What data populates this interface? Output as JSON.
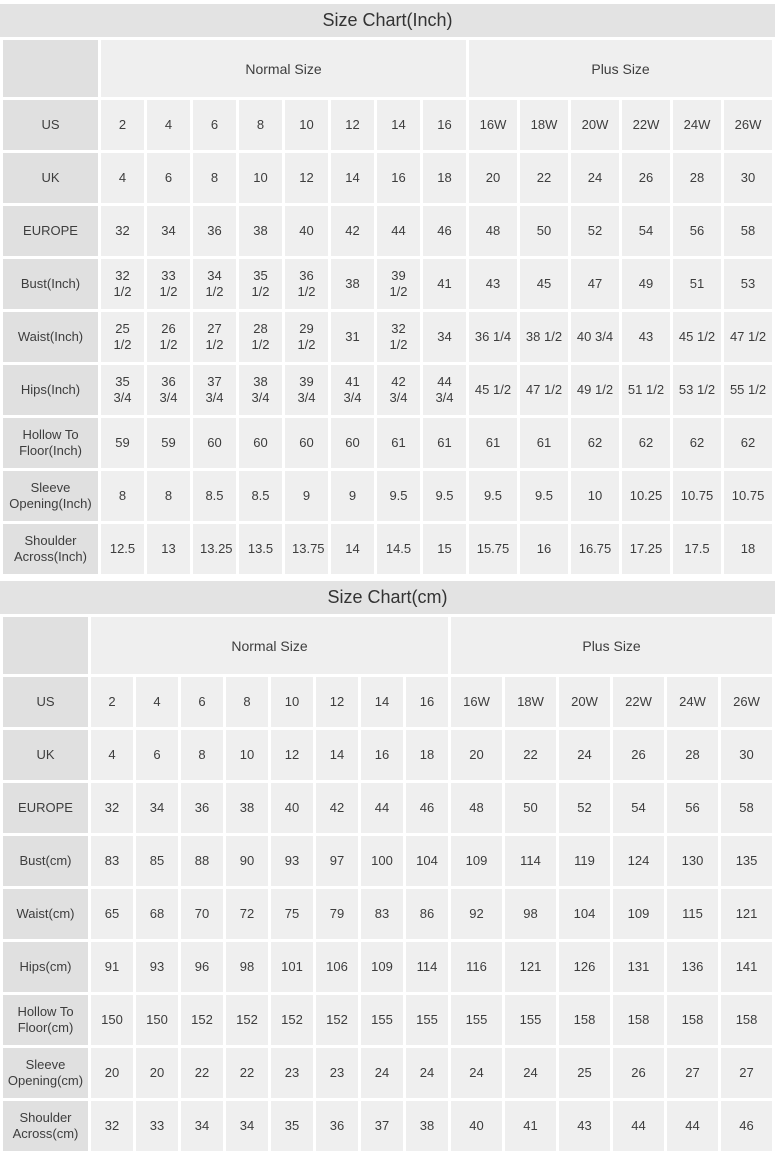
{
  "colors": {
    "title_band": "#e3e3e3",
    "label_cell": "#e0e0e0",
    "data_cell": "#efefef",
    "gutter": "#ffffff",
    "text": "#3d3d3d"
  },
  "chart_data": [
    {
      "type": "table",
      "title": "Size Chart(Inch)",
      "group_headers": [
        {
          "label": "Normal Size",
          "columns": 8
        },
        {
          "label": "Plus Size",
          "columns": 6
        }
      ],
      "rows": [
        {
          "label": "US",
          "values": [
            "2",
            "4",
            "6",
            "8",
            "10",
            "12",
            "14",
            "16",
            "16W",
            "18W",
            "20W",
            "22W",
            "24W",
            "26W"
          ]
        },
        {
          "label": "UK",
          "values": [
            "4",
            "6",
            "8",
            "10",
            "12",
            "14",
            "16",
            "18",
            "20",
            "22",
            "24",
            "26",
            "28",
            "30"
          ]
        },
        {
          "label": "EUROPE",
          "values": [
            "32",
            "34",
            "36",
            "38",
            "40",
            "42",
            "44",
            "46",
            "48",
            "50",
            "52",
            "54",
            "56",
            "58"
          ]
        },
        {
          "label": "Bust(Inch)",
          "values": [
            "32 1/2",
            "33 1/2",
            "34 1/2",
            "35 1/2",
            "36 1/2",
            "38",
            "39 1/2",
            "41",
            "43",
            "45",
            "47",
            "49",
            "51",
            "53"
          ]
        },
        {
          "label": "Waist(Inch)",
          "values": [
            "25 1/2",
            "26 1/2",
            "27 1/2",
            "28 1/2",
            "29 1/2",
            "31",
            "32 1/2",
            "34",
            "36 1/4",
            "38 1/2",
            "40 3/4",
            "43",
            "45 1/2",
            "47 1/2"
          ]
        },
        {
          "label": "Hips(Inch)",
          "values": [
            "35 3/4",
            "36 3/4",
            "37 3/4",
            "38 3/4",
            "39 3/4",
            "41 3/4",
            "42 3/4",
            "44 3/4",
            "45 1/2",
            "47 1/2",
            "49 1/2",
            "51 1/2",
            "53 1/2",
            "55 1/2"
          ]
        },
        {
          "label": "Hollow To Floor(Inch)",
          "values": [
            "59",
            "59",
            "60",
            "60",
            "60",
            "60",
            "61",
            "61",
            "61",
            "61",
            "62",
            "62",
            "62",
            "62"
          ]
        },
        {
          "label": "Sleeve Opening(Inch)",
          "values": [
            "8",
            "8",
            "8.5",
            "8.5",
            "9",
            "9",
            "9.5",
            "9.5",
            "9.5",
            "9.5",
            "10",
            "10.25",
            "10.75",
            "10.75"
          ]
        },
        {
          "label": "Shoulder Across(Inch)",
          "values": [
            "12.5",
            "13",
            "13.25",
            "13.5",
            "13.75",
            "14",
            "14.5",
            "15",
            "15.75",
            "16",
            "16.75",
            "17.25",
            "17.5",
            "18"
          ]
        }
      ]
    },
    {
      "type": "table",
      "title": "Size Chart(cm)",
      "group_headers": [
        {
          "label": "Normal Size",
          "columns": 8
        },
        {
          "label": "Plus Size",
          "columns": 6
        }
      ],
      "rows": [
        {
          "label": "US",
          "values": [
            "2",
            "4",
            "6",
            "8",
            "10",
            "12",
            "14",
            "16",
            "16W",
            "18W",
            "20W",
            "22W",
            "24W",
            "26W"
          ]
        },
        {
          "label": "UK",
          "values": [
            "4",
            "6",
            "8",
            "10",
            "12",
            "14",
            "16",
            "18",
            "20",
            "22",
            "24",
            "26",
            "28",
            "30"
          ]
        },
        {
          "label": "EUROPE",
          "values": [
            "32",
            "34",
            "36",
            "38",
            "40",
            "42",
            "44",
            "46",
            "48",
            "50",
            "52",
            "54",
            "56",
            "58"
          ]
        },
        {
          "label": "Bust(cm)",
          "values": [
            "83",
            "85",
            "88",
            "90",
            "93",
            "97",
            "100",
            "104",
            "109",
            "114",
            "119",
            "124",
            "130",
            "135"
          ]
        },
        {
          "label": "Waist(cm)",
          "values": [
            "65",
            "68",
            "70",
            "72",
            "75",
            "79",
            "83",
            "86",
            "92",
            "98",
            "104",
            "109",
            "115",
            "121"
          ]
        },
        {
          "label": "Hips(cm)",
          "values": [
            "91",
            "93",
            "96",
            "98",
            "101",
            "106",
            "109",
            "114",
            "116",
            "121",
            "126",
            "131",
            "136",
            "141"
          ]
        },
        {
          "label": "Hollow To Floor(cm)",
          "values": [
            "150",
            "150",
            "152",
            "152",
            "152",
            "152",
            "155",
            "155",
            "155",
            "155",
            "158",
            "158",
            "158",
            "158"
          ]
        },
        {
          "label": "Sleeve Opening(cm)",
          "values": [
            "20",
            "20",
            "22",
            "22",
            "23",
            "23",
            "24",
            "24",
            "24",
            "24",
            "25",
            "26",
            "27",
            "27"
          ]
        },
        {
          "label": "Shoulder Across(cm)",
          "values": [
            "32",
            "33",
            "34",
            "34",
            "35",
            "36",
            "37",
            "38",
            "40",
            "41",
            "43",
            "44",
            "44",
            "46"
          ]
        }
      ]
    }
  ]
}
